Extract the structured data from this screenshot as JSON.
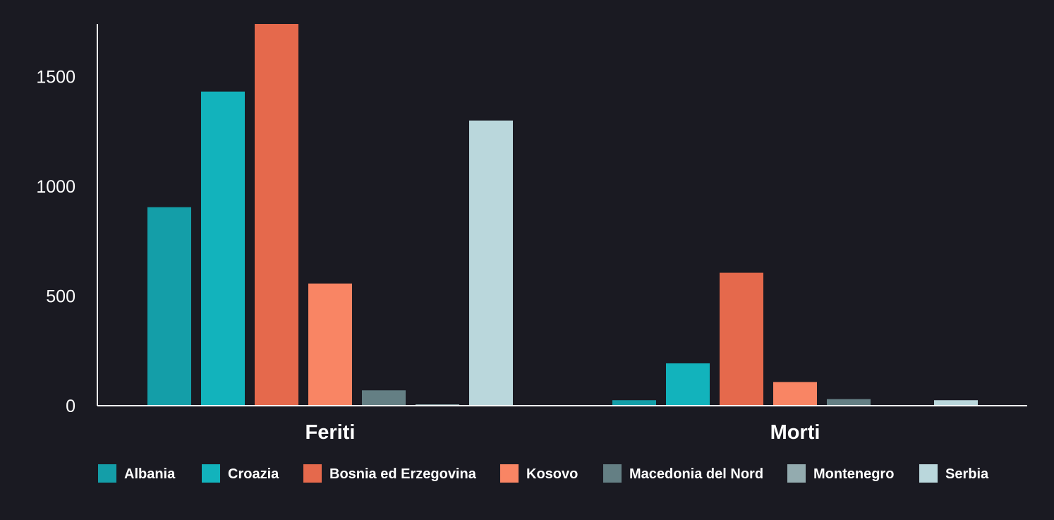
{
  "chart_data": {
    "type": "bar",
    "categories": [
      "Feriti",
      "Morti"
    ],
    "series": [
      {
        "name": "Albania",
        "color": "#149ea8",
        "values": [
          905,
          25
        ]
      },
      {
        "name": "Croazia",
        "color": "#12b3bc",
        "values": [
          1432,
          193
        ]
      },
      {
        "name": "Bosnia ed Erzegovina",
        "color": "#e5694c",
        "values": [
          1740,
          606
        ]
      },
      {
        "name": "Kosovo",
        "color": "#f98564",
        "values": [
          557,
          108
        ]
      },
      {
        "name": "Macedonia del Nord",
        "color": "#647f84",
        "values": [
          70,
          30
        ]
      },
      {
        "name": "Montenegro",
        "color": "#93abaf",
        "values": [
          6,
          0
        ]
      },
      {
        "name": "Serbia",
        "color": "#bad7dc",
        "values": [
          1300,
          25
        ]
      }
    ],
    "y_ticks": [
      0,
      500,
      1000,
      1500
    ],
    "ylim": [
      0,
      1740
    ],
    "title": "",
    "xlabel": "",
    "ylabel": "",
    "grid": false,
    "legend": "bottom-center"
  }
}
